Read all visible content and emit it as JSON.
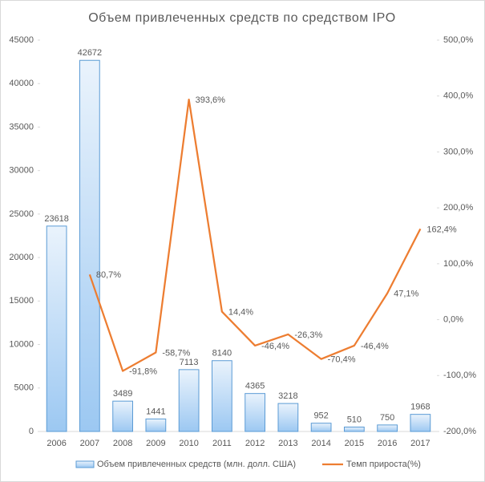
{
  "chart_data": {
    "type": "bar_line",
    "title": "Объем привлеченных средств  по средством  IPO",
    "categories": [
      "2006",
      "2007",
      "2008",
      "2009",
      "2010",
      "2011",
      "2012",
      "2013",
      "2014",
      "2015",
      "2016",
      "2017"
    ],
    "series": [
      {
        "name": "Объем привлеченных средств (млн. долл. США)",
        "type": "bar",
        "color": "#5b9bd5",
        "values": [
          23618,
          42672,
          3489,
          1441,
          7113,
          8140,
          4365,
          3218,
          952,
          510,
          750,
          1968
        ]
      },
      {
        "name": "Темп прироста(%)",
        "type": "line",
        "axis": "y2",
        "color": "#ed7d31",
        "values": [
          null,
          80.7,
          -91.8,
          -58.7,
          393.6,
          14.4,
          -46.4,
          -26.3,
          -70.4,
          -46.4,
          47.1,
          162.4
        ],
        "value_labels": [
          null,
          "80,7%",
          "-91,8%",
          "-58,7%",
          "393,6%",
          "14,4%",
          "-46,4%",
          "-26,3%",
          "-70,4%",
          "-46,4%",
          "47,1%",
          "162,4%"
        ]
      }
    ],
    "ylim": [
      0,
      45000
    ],
    "yticks": [
      0,
      5000,
      10000,
      15000,
      20000,
      25000,
      30000,
      35000,
      40000,
      45000
    ],
    "y2lim": [
      -200,
      500
    ],
    "y2ticks": [
      {
        "value": -200,
        "label": "-200,0%"
      },
      {
        "value": -100,
        "label": "-100,0%"
      },
      {
        "value": 0,
        "label": "0,0%"
      },
      {
        "value": 100,
        "label": "100,0%"
      },
      {
        "value": 200,
        "label": "200,0%"
      },
      {
        "value": 300,
        "label": "300,0%"
      },
      {
        "value": 400,
        "label": "400,0%"
      },
      {
        "value": 500,
        "label": "500,0%"
      }
    ],
    "legend": "bottom"
  }
}
